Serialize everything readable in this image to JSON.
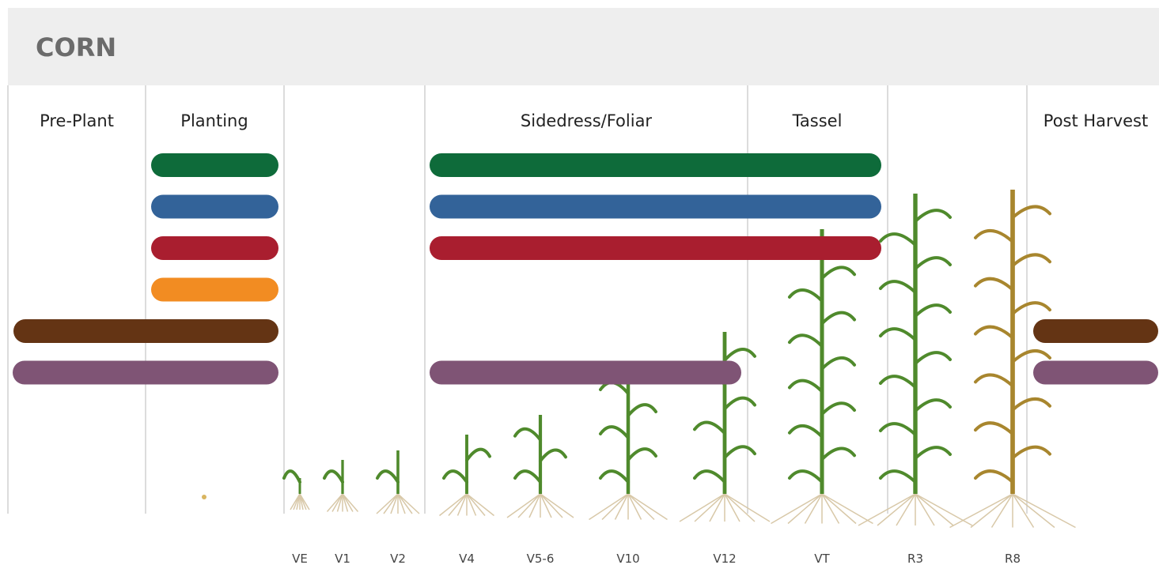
{
  "header": {
    "title": "CORN"
  },
  "columns": [
    "Pre-Plant",
    "Planting",
    "Sidedress/Foliar",
    "Tassel",
    "Post Harvest"
  ],
  "stages": [
    "VE",
    "V1",
    "V2",
    "V4",
    "V5-6",
    "V10",
    "V12",
    "VT",
    "R3",
    "R8"
  ]
}
